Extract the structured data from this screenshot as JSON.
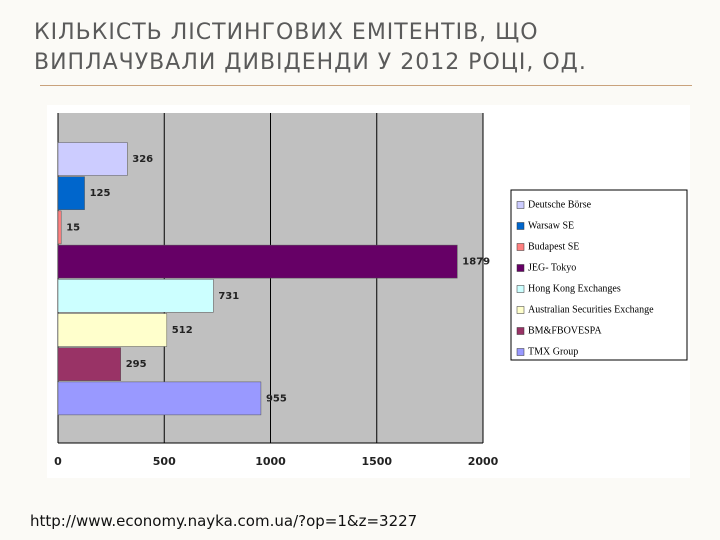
{
  "chart_data": {
    "type": "hbar",
    "title": "КІЛЬКІСТЬ ЛІСТИНГОВИХ ЕМІТЕНТІВ, ЩО ВИПЛАЧУВАЛИ ДИВІДЕНДИ У 2012 РОЦІ, ОД.",
    "source": "http://www.economy.nayka.com.ua/?op=1&z=3227",
    "series": [
      {
        "name": "Deutsche Börse",
        "color": "#ccccff",
        "values": [
          326
        ]
      },
      {
        "name": "Warsaw SE",
        "color": "#0066cc",
        "values": [
          125
        ]
      },
      {
        "name": "Budapest SE",
        "color": "#ff8080",
        "values": [
          15
        ]
      },
      {
        "name": "JEG- Tokyo",
        "color": "#660066",
        "values": [
          1879
        ]
      },
      {
        "name": "Hong Kong Exchanges",
        "color": "#ccffff",
        "values": [
          731
        ]
      },
      {
        "name": "Australian Securities Exchange",
        "color": "#ffffcc",
        "values": [
          512
        ]
      },
      {
        "name": "BM&FBOVESPA",
        "color": "#993366",
        "values": [
          295
        ]
      },
      {
        "name": "TMX Group",
        "color": "#9999ff",
        "values": [
          955
        ]
      }
    ],
    "xlim": [
      0,
      2000
    ],
    "xticks": [
      0,
      500,
      1000,
      1500,
      2000
    ],
    "grid": true,
    "legend": "right"
  }
}
